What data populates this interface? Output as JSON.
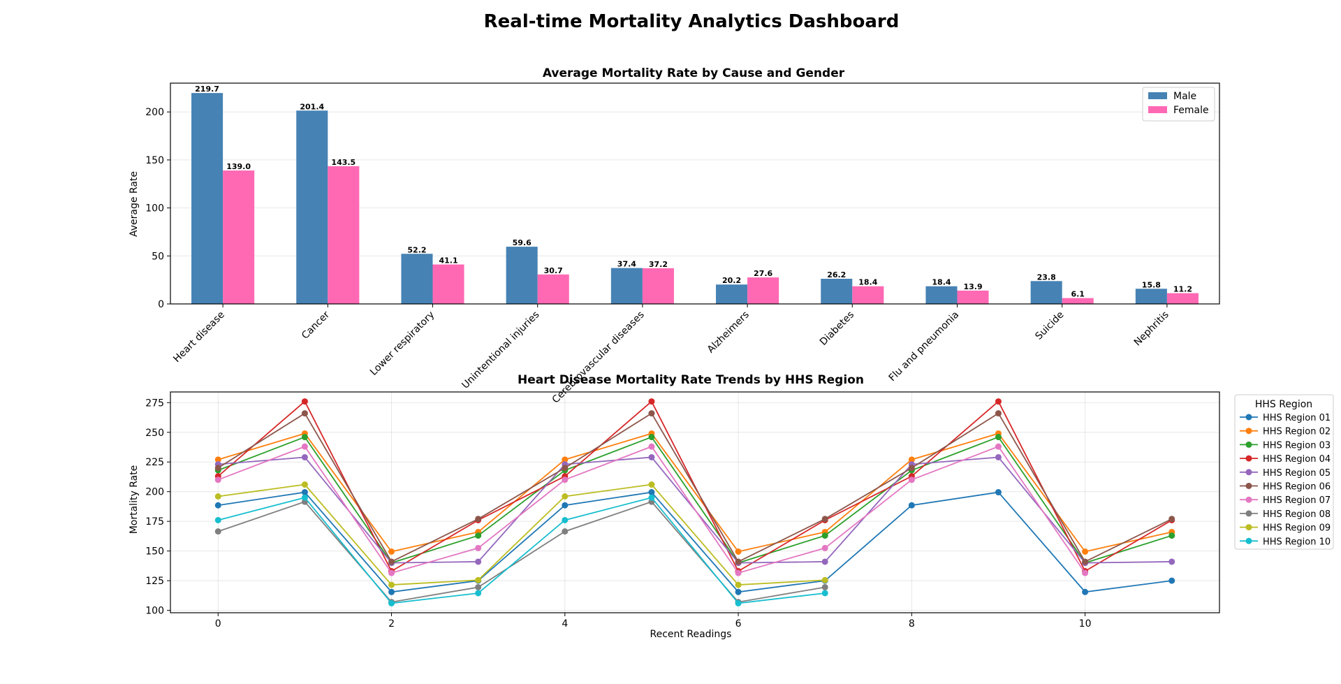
{
  "dashboard": {
    "title": "Real-time Mortality Analytics Dashboard"
  },
  "chart_data": [
    {
      "type": "bar",
      "title": "Average Mortality Rate by Cause and Gender",
      "xlabel": "",
      "ylabel": "Average Rate",
      "ylim": [
        0,
        230
      ],
      "yticks": [
        0,
        50,
        100,
        150,
        200
      ],
      "grid": true,
      "legend_position": "top-right",
      "categories": [
        "Heart disease",
        "Cancer",
        "Lower respiratory",
        "Unintentional injuries",
        "Cerebrovascular diseases",
        "Alzheimers",
        "Diabetes",
        "Flu and pneumonia",
        "Suicide",
        "Nephritis"
      ],
      "series": [
        {
          "name": "Male",
          "color": "#4682b4",
          "values": [
            219.7,
            201.4,
            52.2,
            59.6,
            37.4,
            20.2,
            26.2,
            18.4,
            23.8,
            15.8
          ],
          "labels": [
            "219.7",
            "201.4",
            "52.2",
            "59.6",
            "37.4",
            "20.2",
            "26.2",
            "18.4",
            "23.8",
            "15.8"
          ]
        },
        {
          "name": "Female",
          "color": "#ff69b4",
          "values": [
            139.0,
            143.5,
            41.1,
            30.7,
            37.2,
            27.6,
            18.4,
            13.9,
            6.1,
            11.2
          ],
          "labels": [
            "139.0",
            "143.5",
            "41.1",
            "30.7",
            "37.2",
            "27.6",
            "18.4",
            "13.9",
            "6.1",
            "11.2"
          ]
        }
      ]
    },
    {
      "type": "line",
      "title": "Heart Disease Mortality Rate Trends by HHS Region",
      "xlabel": "Recent Readings",
      "ylabel": "Mortality Rate",
      "xlim": [
        -0.55,
        11.55
      ],
      "ylim": [
        98,
        284
      ],
      "xticks": [
        0,
        2,
        4,
        6,
        8,
        10
      ],
      "yticks": [
        100,
        125,
        150,
        175,
        200,
        225,
        250,
        275
      ],
      "grid": true,
      "legend_title": "HHS Region",
      "legend_position": "outside-right",
      "series": [
        {
          "name": "HHS Region 01",
          "color": "#1f77b4",
          "x": [
            0,
            1,
            2,
            3,
            4,
            5,
            6,
            7,
            8,
            9,
            10,
            11
          ],
          "values": [
            188.5,
            199.5,
            115.5,
            125,
            188.5,
            199.5,
            115.5,
            125,
            188.5,
            199.5,
            115.5,
            125
          ]
        },
        {
          "name": "HHS Region 02",
          "color": "#ff7f0e",
          "x": [
            0,
            1,
            2,
            3,
            4,
            5,
            6,
            7,
            8,
            9,
            10,
            11
          ],
          "values": [
            227,
            249,
            149.5,
            166,
            227,
            249,
            149.5,
            166,
            227,
            249,
            149.5,
            166
          ]
        },
        {
          "name": "HHS Region 03",
          "color": "#2ca02c",
          "x": [
            0,
            1,
            2,
            3,
            4,
            5,
            6,
            7,
            8,
            9,
            10,
            11
          ],
          "values": [
            218,
            246,
            140,
            163,
            218,
            246,
            140,
            163,
            218,
            246,
            140,
            163
          ]
        },
        {
          "name": "HHS Region 04",
          "color": "#d62728",
          "x": [
            0,
            1,
            2,
            3,
            4,
            5,
            6,
            7,
            8,
            9,
            10,
            11
          ],
          "values": [
            213,
            276,
            133,
            176,
            213,
            276,
            133,
            176,
            213,
            276,
            133,
            176
          ]
        },
        {
          "name": "HHS Region 05",
          "color": "#9467bd",
          "x": [
            0,
            1,
            2,
            3,
            4,
            5,
            6,
            7,
            8,
            9,
            10,
            11
          ],
          "values": [
            223,
            229,
            140,
            141,
            223,
            229,
            140,
            141,
            223,
            229,
            140,
            141
          ]
        },
        {
          "name": "HHS Region 06",
          "color": "#8c564b",
          "x": [
            0,
            1,
            2,
            3,
            4,
            5,
            6,
            7,
            8,
            9,
            10,
            11
          ],
          "values": [
            220,
            266,
            141,
            177,
            220,
            266,
            141,
            177,
            220,
            266,
            141,
            177
          ]
        },
        {
          "name": "HHS Region 07",
          "color": "#e377c2",
          "x": [
            0,
            1,
            2,
            3,
            4,
            5,
            6,
            7,
            8,
            9,
            10
          ],
          "values": [
            210,
            238,
            131.5,
            152.5,
            210,
            238,
            131.5,
            152.5,
            210,
            238,
            131.5
          ]
        },
        {
          "name": "HHS Region 08",
          "color": "#7f7f7f",
          "x": [
            0,
            1,
            2,
            3,
            4,
            5,
            6,
            7
          ],
          "values": [
            166.5,
            191.5,
            107,
            119.5,
            166.5,
            191.5,
            107,
            119.5
          ]
        },
        {
          "name": "HHS Region 09",
          "color": "#bcbd22",
          "x": [
            0,
            1,
            2,
            3,
            4,
            5,
            6,
            7
          ],
          "values": [
            196,
            206,
            121.5,
            125.5,
            196,
            206,
            121.5,
            125.5
          ]
        },
        {
          "name": "HHS Region 10",
          "color": "#17becf",
          "x": [
            0,
            1,
            2,
            3,
            4,
            5,
            6,
            7
          ],
          "values": [
            176,
            195,
            106,
            114.5,
            176,
            195,
            106,
            114.5
          ]
        }
      ]
    }
  ]
}
